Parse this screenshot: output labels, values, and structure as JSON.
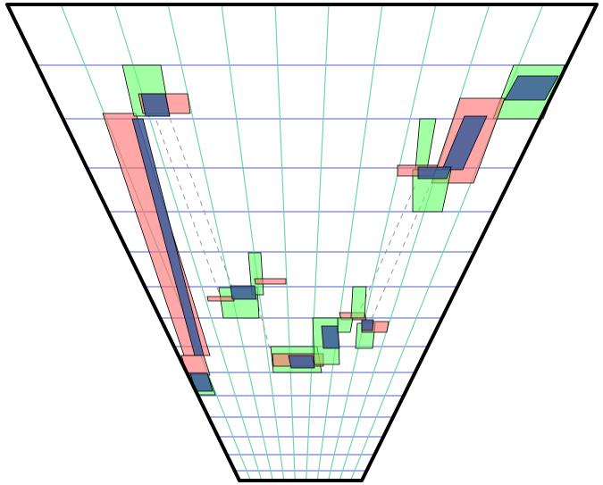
{
  "colors": {
    "outline": "#000000",
    "horizontal_grid": "#6d7fe0",
    "converging_grid": "#6fd6a8",
    "red_region": "#ff6b6b",
    "green_region": "#66ff66",
    "blue_overlap": "#3c5a99",
    "connector": "#999999"
  }
}
